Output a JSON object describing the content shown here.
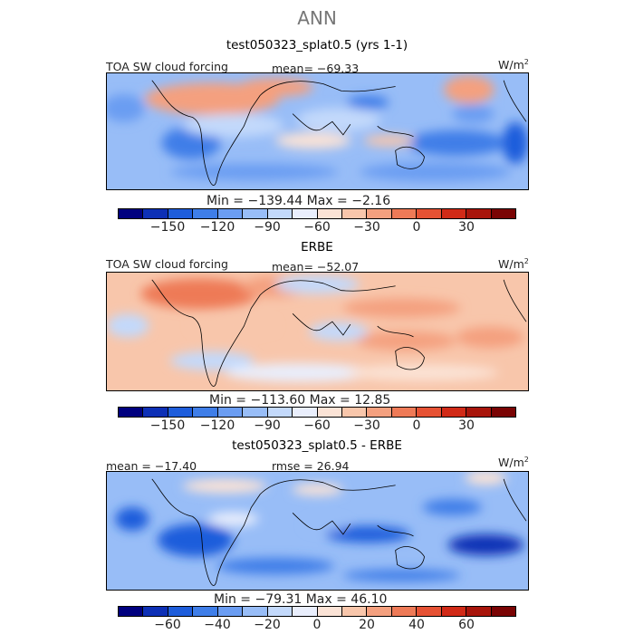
{
  "title": "ANN",
  "palette": [
    "#00007f",
    "#0d30b6",
    "#1e5ddb",
    "#3f7ee8",
    "#6b9df2",
    "#98bdf7",
    "#c3d9fb",
    "#e9eefc",
    "#fbe3d6",
    "#f8c6ab",
    "#f4a07f",
    "#ee7a57",
    "#e65234",
    "#d12a17",
    "#a8150b",
    "#7a0404"
  ],
  "panels": [
    {
      "title": "test050323_splat0.5 (yrs 1-1)",
      "left_label": "TOA SW cloud forcing",
      "center_label": "mean= −69.33",
      "units": "W/m",
      "units_exp": "2",
      "minmax": "Min = −139.44  Max =  −2.16",
      "ticks": [
        "−150",
        "−120",
        "−90",
        "−60",
        "−30",
        "0",
        "30"
      ],
      "base": "#98bdf7"
    },
    {
      "title": "ERBE",
      "left_label": "TOA SW cloud forcing",
      "center_label": "mean= −52.07",
      "units": "W/m",
      "units_exp": "2",
      "minmax": "Min = −113.60  Max =  12.85",
      "ticks": [
        "−150",
        "−120",
        "−90",
        "−60",
        "−30",
        "0",
        "30"
      ],
      "base": "#f8c6ab"
    },
    {
      "title": "test050323_splat0.5 - ERBE",
      "left_label": "mean = −17.40",
      "center_label": "rmse =  26.94",
      "units": "W/m",
      "units_exp": "2",
      "minmax": "Min = −79.31  Max =  46.10",
      "ticks": [
        "−60",
        "−40",
        "−20",
        "0",
        "20",
        "40",
        "60"
      ],
      "base": "#98bdf7"
    }
  ]
}
